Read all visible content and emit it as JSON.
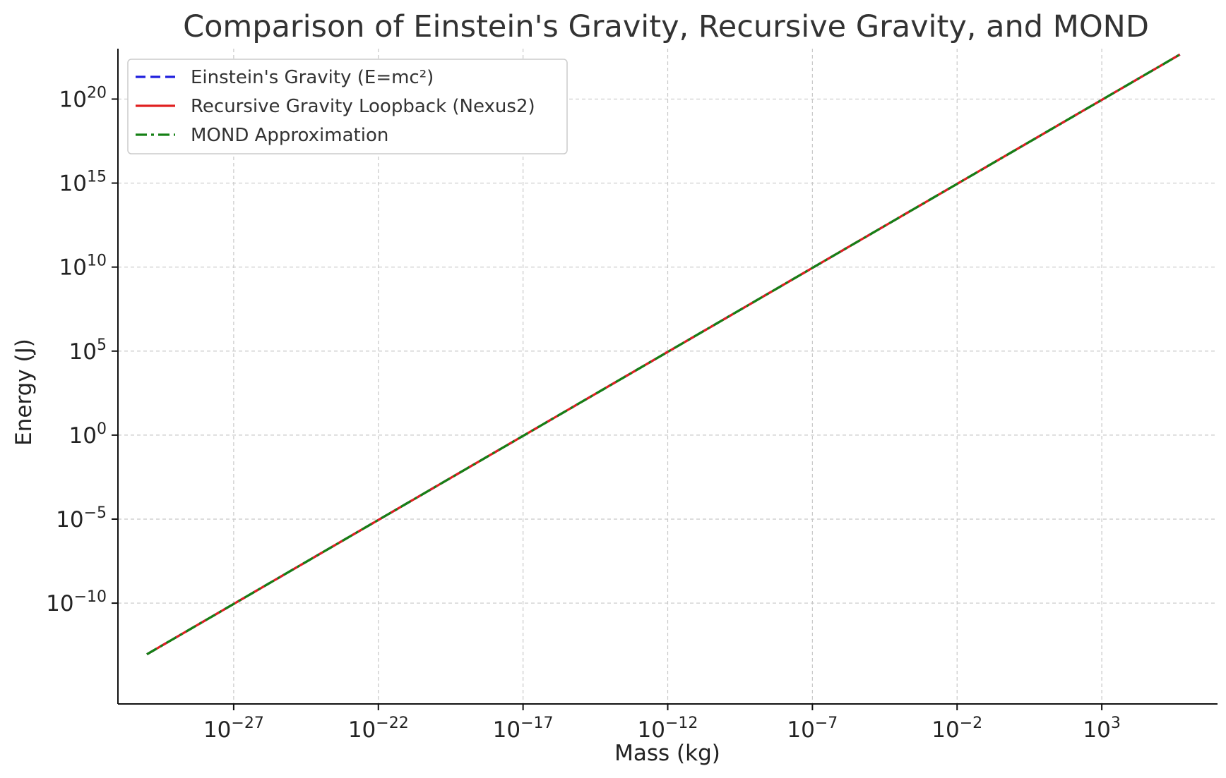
{
  "chart_data": {
    "type": "line",
    "title": "Comparison of Einstein's Gravity, Recursive Gravity, and MOND",
    "xlabel": "Mass (kg)",
    "ylabel": "Energy (J)",
    "xscale": "log",
    "yscale": "log",
    "xlim": [
      1e-31,
      10000000.0
    ],
    "ylim": [
      1e-16,
      1e+23
    ],
    "grid": true,
    "legend_position": "top-left",
    "x_ticks": [
      {
        "base": "10",
        "exp": "−27",
        "value": 1e-27
      },
      {
        "base": "10",
        "exp": "−22",
        "value": 1e-22
      },
      {
        "base": "10",
        "exp": "−17",
        "value": 1e-17
      },
      {
        "base": "10",
        "exp": "−12",
        "value": 1e-12
      },
      {
        "base": "10",
        "exp": "−7",
        "value": 1e-07
      },
      {
        "base": "10",
        "exp": "−2",
        "value": 0.01
      },
      {
        "base": "10",
        "exp": "3",
        "value": 1000.0
      }
    ],
    "y_ticks": [
      {
        "base": "10",
        "exp": "20",
        "value": 1e+20
      },
      {
        "base": "10",
        "exp": "15",
        "value": 1000000000000000.0
      },
      {
        "base": "10",
        "exp": "10",
        "value": 10000000000.0
      },
      {
        "base": "10",
        "exp": "5",
        "value": 100000.0
      },
      {
        "base": "10",
        "exp": "0",
        "value": 1
      },
      {
        "base": "10",
        "exp": "−5",
        "value": 1e-05
      },
      {
        "base": "10",
        "exp": "−10",
        "value": 1e-10
      }
    ],
    "series": [
      {
        "name": "Einstein's Gravity (E=mc²)",
        "color": "#1f1fdd",
        "style": "dashed",
        "x": [
          1e-30,
          1e-27,
          1e-22,
          1e-17,
          1e-12,
          1e-07,
          0.01,
          1000.0,
          500000.0
        ],
        "y": [
          9e-14,
          9e-11,
          9e-06,
          0.9,
          90000.0,
          9000000000.0,
          900000000000000.0,
          9e+19,
          4.5e+22
        ]
      },
      {
        "name": "Recursive Gravity Loopback (Nexus2)",
        "color": "#e02020",
        "style": "solid",
        "x": [
          1e-30,
          1e-27,
          1e-22,
          1e-17,
          1e-12,
          1e-07,
          0.01,
          1000.0,
          500000.0
        ],
        "y": [
          9e-14,
          9e-11,
          9e-06,
          0.9,
          90000.0,
          9000000000.0,
          900000000000000.0,
          9e+19,
          4.5e+22
        ]
      },
      {
        "name": "MOND Approximation",
        "color": "#158015",
        "style": "dashdot",
        "x": [
          1e-30,
          1e-27,
          1e-22,
          1e-17,
          1e-12,
          1e-07,
          0.01,
          1000.0,
          500000.0
        ],
        "y": [
          9e-14,
          9e-11,
          9e-06,
          0.9,
          90000.0,
          9000000000.0,
          900000000000000.0,
          9e+19,
          4.5e+22
        ]
      }
    ]
  }
}
